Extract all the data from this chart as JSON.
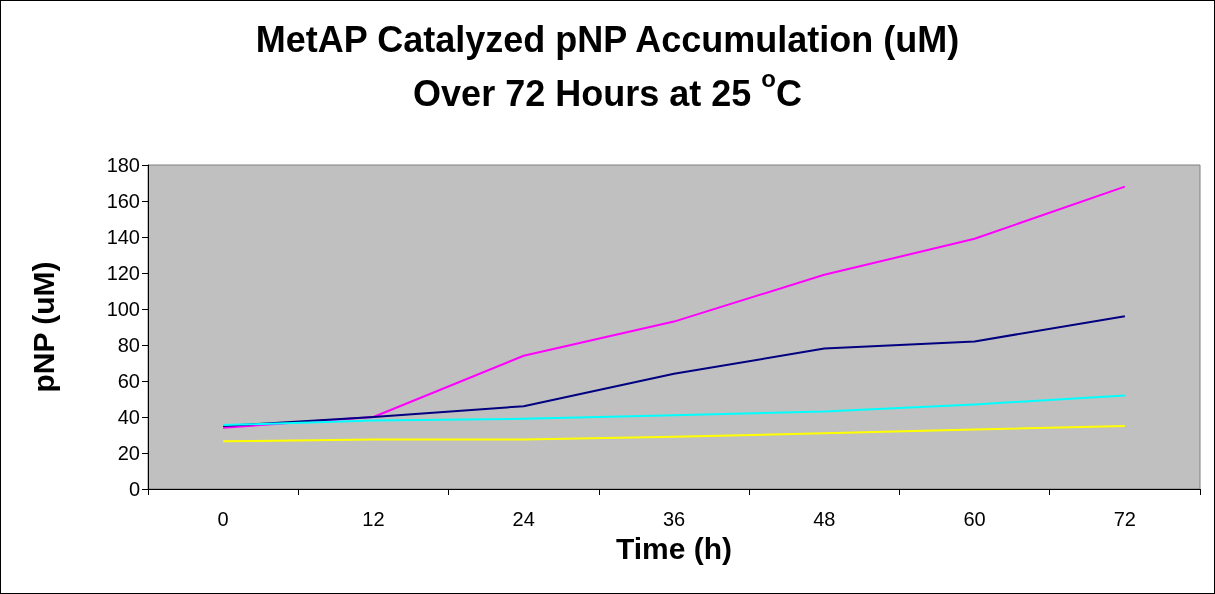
{
  "chart_data": {
    "type": "line",
    "title": "MetAP Catalyzed pNP Accumulation (uM)\nOver 72 Hours at 25 $^{o}$C",
    "xlabel": "Time (h)",
    "ylabel": "pNP (uM)",
    "categories": [
      "0",
      "12",
      "24",
      "36",
      "48",
      "60",
      "72"
    ],
    "series": [
      {
        "color": "#ff00ff",
        "values": [
          34,
          40,
          74,
          93,
          119,
          139,
          168
        ]
      },
      {
        "color": "#000080",
        "values": [
          35,
          40,
          46,
          64,
          78,
          82,
          96
        ]
      },
      {
        "color": "#00ffff",
        "values": [
          35.5,
          38,
          39,
          41,
          43,
          47,
          52
        ]
      },
      {
        "color": "#ffff00",
        "values": [
          26.5,
          27.5,
          27.5,
          29,
          31,
          33,
          35
        ]
      }
    ],
    "ylim": [
      0,
      180
    ],
    "yticks": [
      0,
      20,
      40,
      60,
      80,
      100,
      120,
      140,
      160,
      180
    ],
    "grid": false,
    "marker": "none",
    "line_style": "solid"
  }
}
